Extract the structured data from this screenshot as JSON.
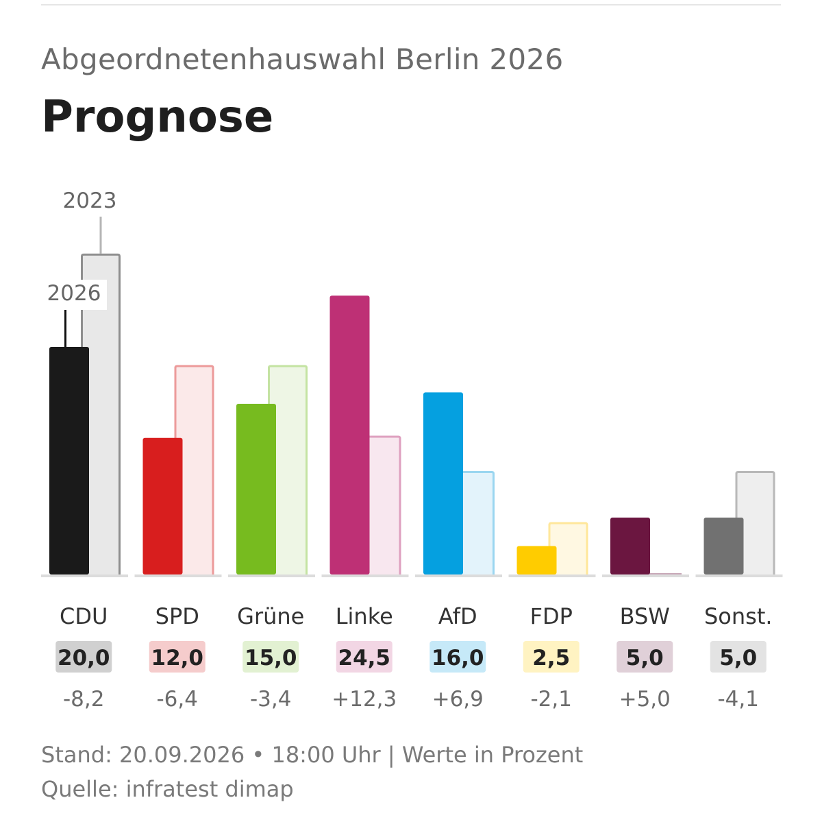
{
  "header": {
    "subtitle": "Abgeordnetenhauswahl Berlin 2026",
    "title": "Prognose"
  },
  "chart_data": {
    "type": "bar",
    "unit": "Prozent",
    "categories": [
      "CDU",
      "SPD",
      "Grüne",
      "Linke",
      "AfD",
      "FDP",
      "BSW",
      "Sonst."
    ],
    "series": [
      {
        "name": "2026",
        "values": [
          20.0,
          12.0,
          15.0,
          24.5,
          16.0,
          2.5,
          5.0,
          5.0
        ],
        "labels": [
          "20,0",
          "12,0",
          "15,0",
          "24,5",
          "16,0",
          "2,5",
          "5,0",
          "5,0"
        ]
      },
      {
        "name": "2023",
        "values": [
          28.2,
          18.4,
          18.4,
          12.2,
          9.1,
          4.6,
          0.0,
          9.1
        ]
      }
    ],
    "diffs": [
      "-8,2",
      "-6,4",
      "-3,4",
      "+12,3",
      "+6,9",
      "-2,1",
      "+5,0",
      "-4,1"
    ],
    "colors": {
      "bar_2026": [
        "#1a1a1a",
        "#d81e1e",
        "#77bb1f",
        "#be3075",
        "#05a0e0",
        "#ffcc00",
        "#6b1640",
        "#717171"
      ],
      "bar_2023_fill": [
        "#e8e8e8",
        "#fbe9e9",
        "#eef6e5",
        "#f8e7ef",
        "#e3f3fb",
        "#fff8e2",
        "#f0e7eb",
        "#eeeeee"
      ],
      "bar_2023_stroke": [
        "#8e8e8e",
        "#ec9a9a",
        "#c4e3a2",
        "#dea0bf",
        "#9ad6f0",
        "#ffe79a",
        "#c8a8b8",
        "#b8b8b8"
      ],
      "badge": [
        "#d0d0d0",
        "#f5cccc",
        "#e2f1d2",
        "#f2d6e4",
        "#c6e9f8",
        "#fff3c2",
        "#e0d0d8",
        "#e3e3e3"
      ]
    },
    "ylim": [
      0,
      30
    ],
    "grid": false,
    "legend": "inline"
  },
  "footer": {
    "line1": "Stand: 20.09.2026 • 18:00 Uhr | Werte in Prozent",
    "line2": "Quelle: infratest dimap"
  }
}
